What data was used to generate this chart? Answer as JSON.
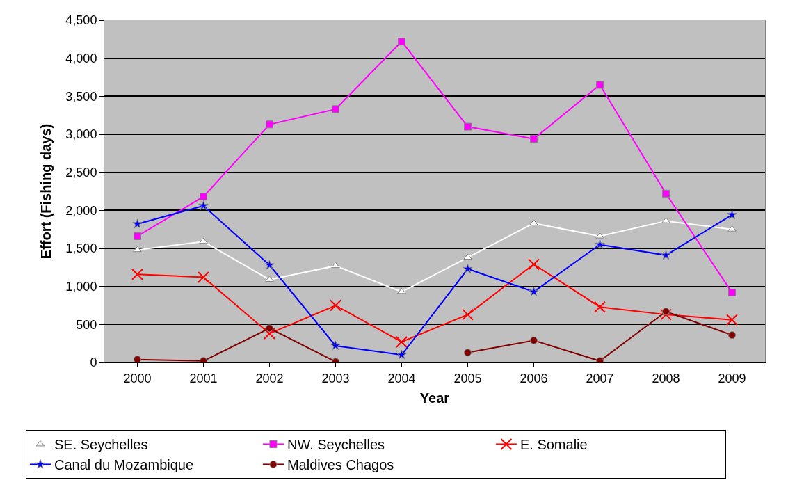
{
  "chart_data": {
    "type": "line",
    "xlabel": "Year",
    "ylabel": "Effort (Fishing days)",
    "categories": [
      "2000",
      "2001",
      "2002",
      "2003",
      "2004",
      "2005",
      "2006",
      "2007",
      "2008",
      "2009"
    ],
    "series": [
      {
        "name": "SE. Seychelles",
        "color": "#ffffff",
        "marker": "triangle",
        "values": [
          1480,
          1590,
          1090,
          1270,
          930,
          1380,
          1830,
          1660,
          1860,
          1750
        ]
      },
      {
        "name": "NW. Seychelles",
        "color": "#ff00ff",
        "marker": "square",
        "values": [
          1660,
          2180,
          3130,
          3330,
          4220,
          3100,
          2940,
          3650,
          2220,
          920
        ]
      },
      {
        "name": "E. Somalie",
        "color": "#ff0000",
        "marker": "cross",
        "values": [
          1160,
          1120,
          380,
          750,
          270,
          630,
          1290,
          730,
          630,
          560
        ]
      },
      {
        "name": "Canal du Mozambique",
        "color": "#0000ff",
        "marker": "star",
        "values": [
          1820,
          2060,
          1280,
          220,
          100,
          1230,
          930,
          1550,
          1410,
          1940
        ]
      },
      {
        "name": "Maldives Chagos",
        "color": "#800000",
        "marker": "circle",
        "values": [
          40,
          20,
          450,
          10,
          null,
          130,
          290,
          20,
          670,
          360
        ]
      }
    ],
    "ylim": [
      0,
      4500
    ],
    "yticks": [
      {
        "value": 0,
        "label": "0"
      },
      {
        "value": 500,
        "label": "500"
      },
      {
        "value": 1000,
        "label": "1,000"
      },
      {
        "value": 1500,
        "label": "1,500"
      },
      {
        "value": 2000,
        "label": "2,000"
      },
      {
        "value": 2500,
        "label": "2,500"
      },
      {
        "value": 3000,
        "label": "3,000"
      },
      {
        "value": 3500,
        "label": "3,500"
      },
      {
        "value": 4000,
        "label": "4,000"
      },
      {
        "value": 4500,
        "label": "4,500"
      }
    ],
    "grid": "y",
    "legend": "bottom",
    "line_style": "solid"
  }
}
